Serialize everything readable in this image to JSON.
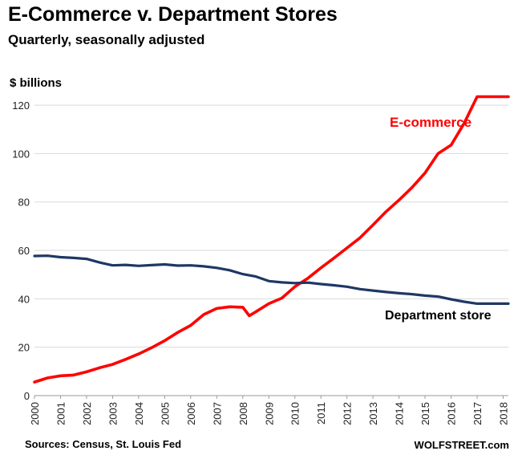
{
  "chart_data": {
    "type": "line",
    "title": "E-Commerce v. Department Stores",
    "subtitle": "Quarterly, seasonally adjusted",
    "ylabel": "$ billions",
    "xlabel": "",
    "ylim": [
      0,
      125
    ],
    "yticks": [
      0,
      20,
      40,
      60,
      80,
      100,
      120
    ],
    "xlim": [
      2000,
      2018.5
    ],
    "xticks": [
      "2000",
      "2001",
      "2002",
      "2003",
      "2004",
      "2005",
      "2006",
      "2007",
      "2008",
      "2009",
      "2010",
      "2011",
      "2012",
      "2013",
      "2014",
      "2015",
      "2016",
      "2017",
      "2018"
    ],
    "grid": true,
    "series": [
      {
        "name": "E-commerce",
        "color": "#ff0000",
        "x": [
          2000,
          2000.5,
          2001,
          2001.5,
          2002,
          2002.5,
          2003,
          2003.5,
          2004,
          2004.5,
          2005,
          2005.5,
          2006,
          2006.5,
          2007,
          2007.5,
          2008,
          2008.25,
          2008.5,
          2008.75,
          2009,
          2009.5,
          2010,
          2010.5,
          2011,
          2011.5,
          2012,
          2012.5,
          2013,
          2013.5,
          2014,
          2014.5,
          2015,
          2015.5,
          2016,
          2016.5,
          2017,
          2017.5,
          2018,
          2018.25
        ],
        "values": [
          5.6,
          7.3,
          8.2,
          8.5,
          9.8,
          11.5,
          12.9,
          15.0,
          17.2,
          19.8,
          22.7,
          26.1,
          29.0,
          33.5,
          36.0,
          36.7,
          36.5,
          33.0,
          34.6,
          36.3,
          38.0,
          40.3,
          45.0,
          48.5,
          52.8,
          56.8,
          61.0,
          65.2,
          70.5,
          76.0,
          80.8,
          86.0,
          92.0,
          100.0,
          103.5,
          112.5,
          123.5,
          123.5,
          123.5,
          123.5
        ]
      },
      {
        "name": "Department store",
        "color": "#1f3864",
        "x": [
          2000,
          2000.5,
          2001,
          2001.5,
          2002,
          2002.5,
          2003,
          2003.5,
          2004,
          2004.5,
          2005,
          2005.5,
          2006,
          2006.5,
          2007,
          2007.5,
          2008,
          2008.5,
          2009,
          2009.5,
          2010,
          2010.5,
          2011,
          2011.5,
          2012,
          2012.5,
          2013,
          2013.5,
          2014,
          2014.5,
          2015,
          2015.5,
          2016,
          2016.5,
          2017,
          2017.5,
          2018,
          2018.25
        ],
        "values": [
          57.7,
          57.8,
          57.2,
          56.9,
          56.5,
          55.0,
          53.8,
          54.0,
          53.6,
          53.9,
          54.2,
          53.7,
          53.8,
          53.4,
          52.8,
          51.8,
          50.2,
          49.2,
          47.3,
          46.8,
          46.5,
          46.7,
          46.1,
          45.6,
          45.0,
          44.0,
          43.4,
          42.8,
          42.3,
          41.9,
          41.3,
          40.9,
          39.8,
          38.8,
          38.0,
          38.0,
          38.0,
          38.0
        ]
      }
    ],
    "annotations": [
      "E-commerce",
      "Department store"
    ]
  },
  "footer": {
    "source": "Sources: Census, St. Louis Fed",
    "brand": "WOLFSTREET.com"
  }
}
